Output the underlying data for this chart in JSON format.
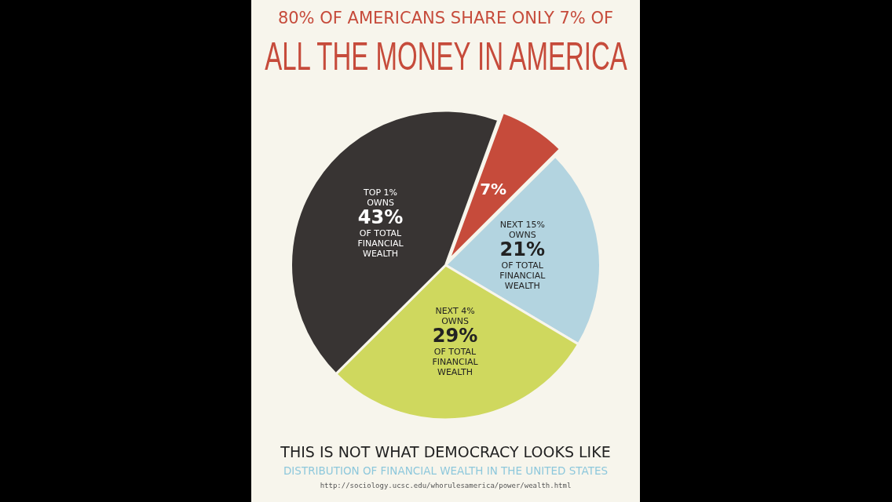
{
  "chart_data": {
    "type": "pie",
    "title": "80% OF AMERICANS SHARE ONLY 7% OF\nALL THE MONEY IN AMERICA",
    "subtitle": "THIS IS NOT WHAT DEMOCRACY LOOKS LIKE",
    "categories": [
      null,
      "NEXT 15% OWNS",
      "NEXT 4% OWNS",
      "TOP 1% OWNS"
    ],
    "values": [
      7,
      21,
      29,
      43
    ],
    "colors": [
      "#c64b3b",
      "#b3d4e0",
      "#cfd85e",
      "#383433"
    ],
    "value_labels": [
      "7%",
      "21%",
      "29%",
      "43%"
    ],
    "legend": false,
    "annotations": [
      {
        "text": "OF TOTAL FINANCIAL WEALTH",
        "x": "NEXT 15% OWNS"
      },
      {
        "text": "OF TOTAL FINANCIAL WEALTH",
        "x": "NEXT 4% OWNS"
      },
      {
        "text": "OF TOTAL FINANCIAL WEALTH",
        "x": "TOP 1% OWNS"
      },
      "DISTRIBUTION OF FINANCIAL WEALTH IN THE UNITED STATES",
      "http://sociology.ucsc.edu/whorulesamerica/power/wealth.html"
    ]
  }
}
